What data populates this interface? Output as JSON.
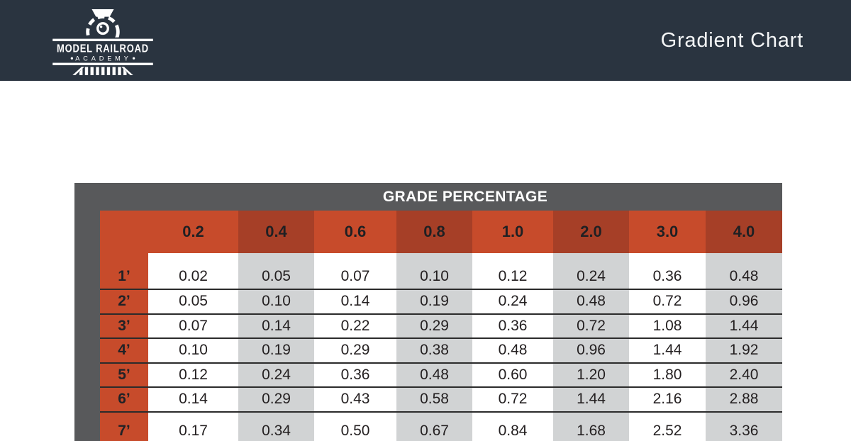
{
  "header": {
    "logo": {
      "icon": "locomotive-icon",
      "line1": "MODEL RAILROAD",
      "line2": "ACADEMY"
    },
    "title": "Gradient Chart"
  },
  "table": {
    "title": "GRADE PERCENTAGE",
    "columns": [
      "0.2",
      "0.4",
      "0.6",
      "0.8",
      "1.0",
      "2.0",
      "3.0",
      "4.0"
    ],
    "rows": [
      {
        "label": "1’",
        "values": [
          "0.02",
          "0.05",
          "0.07",
          "0.10",
          "0.12",
          "0.24",
          "0.36",
          "0.48"
        ]
      },
      {
        "label": "2’",
        "values": [
          "0.05",
          "0.10",
          "0.14",
          "0.19",
          "0.24",
          "0.48",
          "0.72",
          "0.96"
        ]
      },
      {
        "label": "3’",
        "values": [
          "0.07",
          "0.14",
          "0.22",
          "0.29",
          "0.36",
          "0.72",
          "1.08",
          "1.44"
        ]
      },
      {
        "label": "4’",
        "values": [
          "0.10",
          "0.19",
          "0.29",
          "0.38",
          "0.48",
          "0.96",
          "1.44",
          "1.92"
        ]
      },
      {
        "label": "5’",
        "values": [
          "0.12",
          "0.24",
          "0.36",
          "0.48",
          "0.60",
          "1.20",
          "1.80",
          "2.40"
        ]
      },
      {
        "label": "6’",
        "values": [
          "0.14",
          "0.29",
          "0.43",
          "0.58",
          "0.72",
          "1.44",
          "2.16",
          "2.88"
        ]
      },
      {
        "label": "7’",
        "values": [
          "0.17",
          "0.34",
          "0.50",
          "0.67",
          "0.84",
          "1.68",
          "2.52",
          "3.36"
        ]
      }
    ]
  },
  "colors": {
    "header_background": "#2a3440",
    "frame_gray": "#58595b",
    "orange_light": "#c74b2b",
    "orange_dark": "#a63f27",
    "stripe_gray": "#d1d3d4",
    "divider": "#2b2b2b",
    "title_text": "#ffffff",
    "cell_text": "#231f20"
  },
  "chart_data": {
    "type": "table",
    "title": "GRADE PERCENTAGE",
    "column_header_group": "GRADE PERCENTAGE",
    "columns_grade_percent": [
      0.2,
      0.4,
      0.6,
      0.8,
      1.0,
      2.0,
      3.0,
      4.0
    ],
    "row_labels_run_feet": [
      "1’",
      "2’",
      "3’",
      "4’",
      "5’",
      "6’",
      "7’"
    ],
    "values_rise": [
      [
        0.02,
        0.05,
        0.07,
        0.1,
        0.12,
        0.24,
        0.36,
        0.48
      ],
      [
        0.05,
        0.1,
        0.14,
        0.19,
        0.24,
        0.48,
        0.72,
        0.96
      ],
      [
        0.07,
        0.14,
        0.22,
        0.29,
        0.36,
        0.72,
        1.08,
        1.44
      ],
      [
        0.1,
        0.19,
        0.29,
        0.38,
        0.48,
        0.96,
        1.44,
        1.92
      ],
      [
        0.12,
        0.24,
        0.36,
        0.48,
        0.6,
        1.2,
        1.8,
        2.4
      ],
      [
        0.14,
        0.29,
        0.43,
        0.58,
        0.72,
        1.44,
        2.16,
        2.88
      ],
      [
        0.17,
        0.34,
        0.5,
        0.67,
        0.84,
        1.68,
        2.52,
        3.36
      ]
    ],
    "layout_hints": {
      "striped_columns": "alternating white / light-gray",
      "header_cells": "alternating light-orange / dark-orange",
      "row_label_column": "orange",
      "table_cropped_at_bottom": true
    }
  }
}
